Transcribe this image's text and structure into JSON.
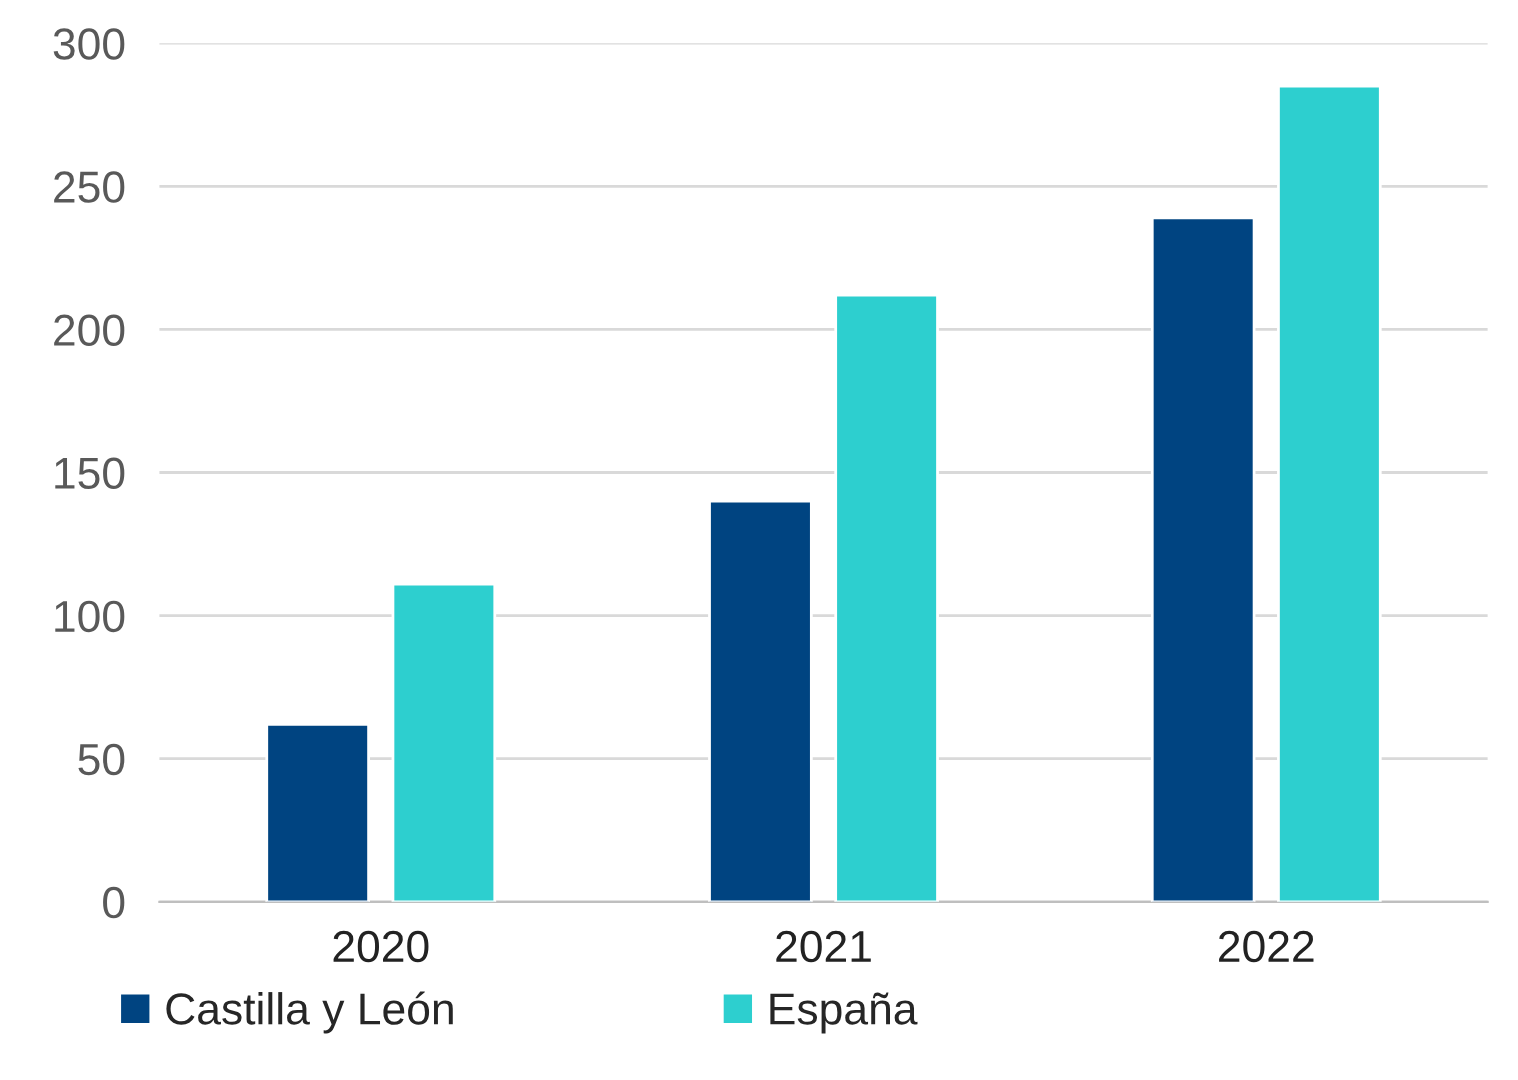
{
  "chart_data": {
    "type": "bar",
    "categories": [
      "2020",
      "2021",
      "2022"
    ],
    "series": [
      {
        "name": "Castilla y León",
        "color": "#004481",
        "values": [
          62,
          140,
          239
        ]
      },
      {
        "name": "España",
        "color": "#2dcfcf",
        "values": [
          111,
          212,
          285
        ]
      }
    ],
    "ylim": [
      0,
      300
    ],
    "yticks": [
      0,
      50,
      100,
      150,
      200,
      250,
      300
    ],
    "grid": "y",
    "legend": "bottom left"
  }
}
